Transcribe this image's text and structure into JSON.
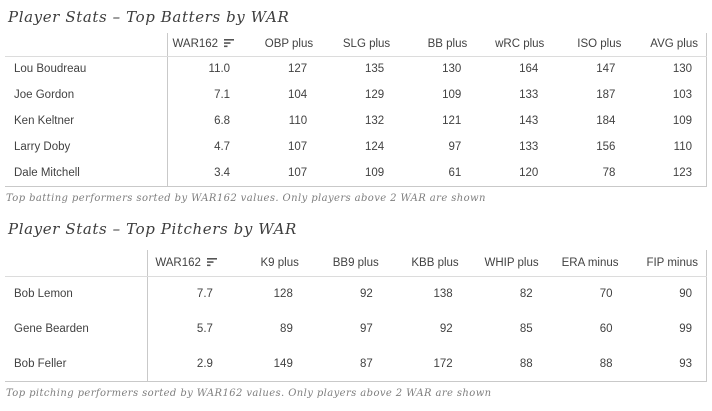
{
  "colors": {
    "title_text": "#3d3d3d",
    "table_text": "#424242",
    "gridline": "#c9c9c9",
    "header_rule": "#dcdcdc",
    "footnote_text": "#7e7e7e"
  },
  "chart_data": [
    {
      "type": "table",
      "title": "Player Stats – Top Batters by WAR",
      "sorted_column": "WAR162",
      "sort_direction": "descending",
      "sort_icon": "sort-descending-icon",
      "columns": [
        "WAR162",
        "OBP plus",
        "SLG plus",
        "BB plus",
        "wRC plus",
        "ISO plus",
        "AVG plus"
      ],
      "rows": [
        {
          "name": "Lou Boudreau",
          "values": [
            "11.0",
            "127",
            "135",
            "130",
            "164",
            "147",
            "130"
          ]
        },
        {
          "name": "Joe Gordon",
          "values": [
            "7.1",
            "104",
            "129",
            "109",
            "133",
            "187",
            "103"
          ]
        },
        {
          "name": "Ken Keltner",
          "values": [
            "6.8",
            "110",
            "132",
            "121",
            "143",
            "184",
            "109"
          ]
        },
        {
          "name": "Larry Doby",
          "values": [
            "4.7",
            "107",
            "124",
            "97",
            "133",
            "156",
            "110"
          ]
        },
        {
          "name": "Dale Mitchell",
          "values": [
            "3.4",
            "107",
            "109",
            "61",
            "120",
            "78",
            "123"
          ]
        }
      ],
      "footnote": "Top batting performers sorted by WAR162 values. Only players above 2 WAR are shown"
    },
    {
      "type": "table",
      "title": "Player Stats – Top Pitchers by WAR",
      "sorted_column": "WAR162",
      "sort_direction": "descending",
      "sort_icon": "sort-descending-icon",
      "columns": [
        "WAR162",
        "K9 plus",
        "BB9 plus",
        "KBB plus",
        "WHIP plus",
        "ERA minus",
        "FIP minus"
      ],
      "rows": [
        {
          "name": "Bob Lemon",
          "values": [
            "7.7",
            "128",
            "92",
            "138",
            "82",
            "70",
            "90"
          ]
        },
        {
          "name": "Gene Bearden",
          "values": [
            "5.7",
            "89",
            "97",
            "92",
            "85",
            "60",
            "99"
          ]
        },
        {
          "name": "Bob Feller",
          "values": [
            "2.9",
            "149",
            "87",
            "172",
            "88",
            "88",
            "93"
          ]
        }
      ],
      "footnote": "Top pitching performers sorted by WAR162 values. Only players above 2 WAR are shown"
    }
  ]
}
